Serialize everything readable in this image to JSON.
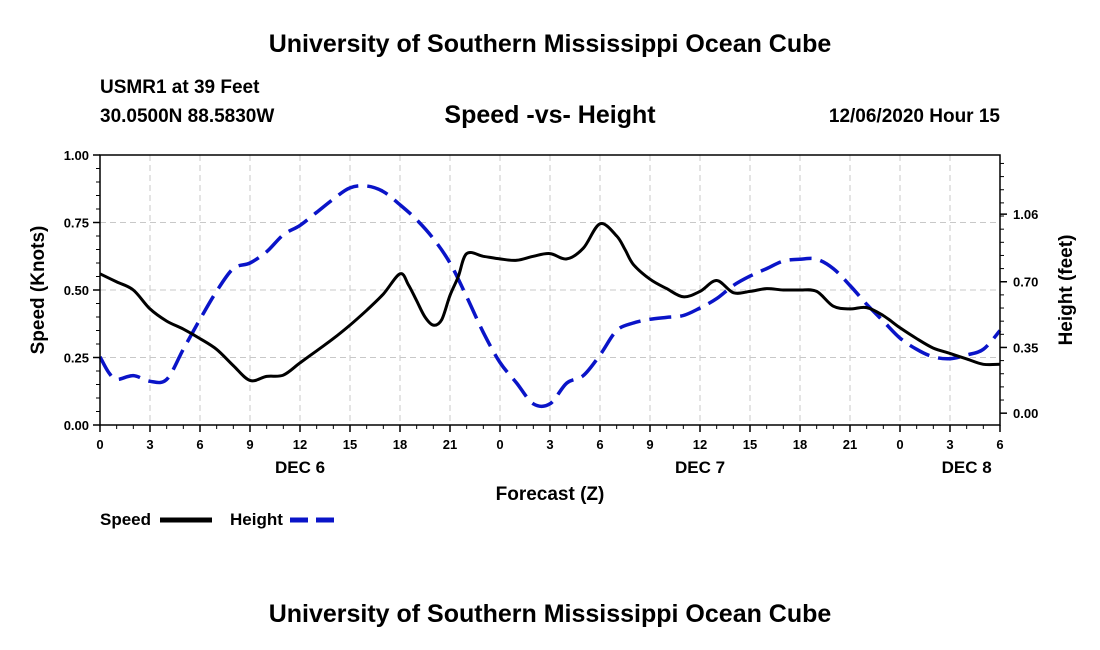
{
  "header": {
    "title": "University of Southern Mississippi Ocean Cube",
    "station": "USMR1 at 39 Feet",
    "coordinates": "30.0500N 88.5830W",
    "subtitle": "Speed -vs- Height",
    "datetime": "12/06/2020 Hour 15"
  },
  "footer": {
    "title": "University of Southern Mississippi Ocean Cube"
  },
  "colors": {
    "speed": "#000000",
    "height": "#0a14c8",
    "grid": "#c8c8c8"
  },
  "chart_data": {
    "type": "line",
    "title": "Speed -vs- Height",
    "xlabel": "Forecast (Z)",
    "ylabel": "Speed (Knots)",
    "y2label": "Height (feet)",
    "xlim": [
      0,
      54
    ],
    "ylim": [
      0,
      1.0
    ],
    "y2lim": [
      -0.063,
      1.375
    ],
    "grid": true,
    "x_ticks": [
      0,
      3,
      6,
      9,
      12,
      15,
      18,
      21,
      24,
      27,
      30,
      33,
      36,
      39,
      42,
      45,
      48,
      51,
      54
    ],
    "x_tick_labels": [
      "0",
      "3",
      "6",
      "9",
      "12",
      "15",
      "18",
      "21",
      "0",
      "3",
      "6",
      "9",
      "12",
      "15",
      "18",
      "21",
      "0",
      "3",
      "6"
    ],
    "day_labels": [
      {
        "x": 12,
        "label": "DEC 6"
      },
      {
        "x": 36,
        "label": "DEC 7"
      },
      {
        "x": 52,
        "label": "DEC 8"
      }
    ],
    "y_ticks": [
      0,
      0.25,
      0.5,
      0.75,
      1.0
    ],
    "y_tick_labels": [
      "0.00",
      "0.25",
      "0.50",
      "0.75",
      "1.00"
    ],
    "y2_ticks": [
      0.0,
      0.35,
      0.7,
      1.06
    ],
    "y2_tick_labels": [
      "0.00",
      "0.35",
      "0.70",
      "1.06"
    ],
    "legend_position": "bottom-left",
    "series": [
      {
        "name": "Speed",
        "axis": "left",
        "style": "solid",
        "x": [
          0,
          1,
          2,
          3,
          4,
          5,
          6,
          7,
          8,
          9,
          10,
          11,
          12,
          13,
          14,
          15,
          16,
          17,
          18,
          18.5,
          19,
          19.5,
          20,
          20.5,
          21,
          21.5,
          22,
          23,
          24,
          25,
          26,
          27,
          28,
          29,
          30,
          31,
          31.5,
          32,
          33,
          34,
          35,
          36,
          37,
          38,
          39,
          40,
          41,
          42,
          43,
          44,
          45,
          46,
          47,
          48,
          49,
          50,
          51,
          52,
          53,
          54
        ],
        "values": [
          0.56,
          0.53,
          0.5,
          0.43,
          0.385,
          0.355,
          0.32,
          0.28,
          0.22,
          0.165,
          0.18,
          0.185,
          0.23,
          0.275,
          0.32,
          0.37,
          0.425,
          0.485,
          0.56,
          0.52,
          0.46,
          0.4,
          0.37,
          0.39,
          0.48,
          0.55,
          0.635,
          0.625,
          0.615,
          0.61,
          0.625,
          0.635,
          0.615,
          0.655,
          0.745,
          0.7,
          0.65,
          0.595,
          0.54,
          0.505,
          0.475,
          0.495,
          0.535,
          0.49,
          0.495,
          0.505,
          0.5,
          0.5,
          0.495,
          0.44,
          0.43,
          0.435,
          0.405,
          0.36,
          0.32,
          0.285,
          0.265,
          0.245,
          0.225,
          0.225
        ]
      },
      {
        "name": "Height",
        "axis": "right",
        "style": "dashed",
        "x": [
          0,
          0.5,
          1,
          2,
          3,
          4,
          5,
          6,
          7,
          8,
          9,
          10,
          11,
          12,
          13,
          14,
          15,
          16,
          17,
          18,
          19,
          20,
          21,
          22,
          23,
          24,
          25,
          26,
          27,
          28,
          29,
          30,
          31,
          32,
          33,
          34,
          35,
          36,
          37,
          38,
          39,
          40,
          41,
          42,
          43,
          44,
          45,
          46,
          47,
          48,
          49,
          50,
          51,
          52,
          53,
          54
        ],
        "values": [
          0.3,
          0.22,
          0.18,
          0.2,
          0.17,
          0.18,
          0.34,
          0.5,
          0.65,
          0.77,
          0.8,
          0.86,
          0.95,
          1.0,
          1.07,
          1.14,
          1.2,
          1.21,
          1.18,
          1.11,
          1.03,
          0.93,
          0.8,
          0.62,
          0.43,
          0.27,
          0.16,
          0.05,
          0.05,
          0.16,
          0.2,
          0.31,
          0.44,
          0.48,
          0.5,
          0.51,
          0.52,
          0.56,
          0.61,
          0.68,
          0.73,
          0.77,
          0.81,
          0.82,
          0.82,
          0.77,
          0.68,
          0.58,
          0.49,
          0.4,
          0.34,
          0.3,
          0.29,
          0.31,
          0.34,
          0.44
        ]
      }
    ]
  }
}
